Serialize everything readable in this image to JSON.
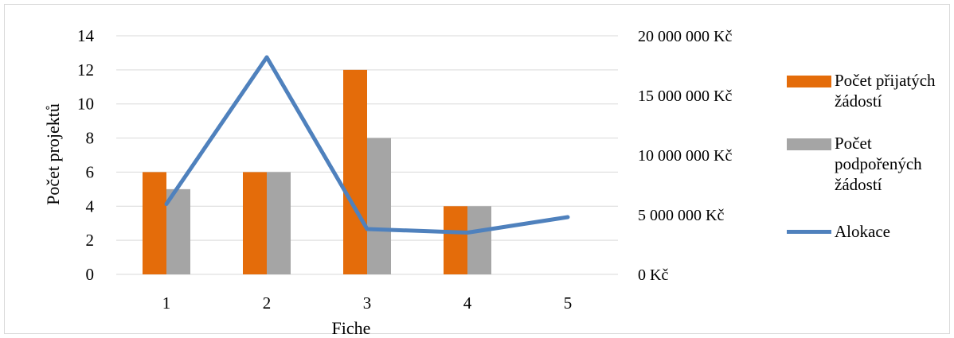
{
  "chart_data": {
    "type": "bar",
    "categories": [
      "1",
      "2",
      "3",
      "4",
      "5"
    ],
    "xlabel": "Fiche",
    "ylabel": "Počet projektů",
    "ylim": [
      0,
      14
    ],
    "yticks": [
      "0",
      "2",
      "4",
      "6",
      "8",
      "10",
      "12",
      "14"
    ],
    "y2lim": [
      0,
      20000000
    ],
    "y2ticks": [
      "0 Kč",
      "5 000 000 Kč",
      "10 000 000 Kč",
      "15 000 000 Kč",
      "20 000 000 Kč"
    ],
    "series": [
      {
        "name": "Počet přijatých žádostí",
        "type": "bar",
        "axis": "left",
        "color": "#e46c0a",
        "values": [
          6,
          6,
          12,
          4,
          0
        ]
      },
      {
        "name": "Počet podpořených žádostí",
        "type": "bar",
        "axis": "right-none",
        "color": "#a5a5a5",
        "values": [
          5,
          6,
          8,
          4,
          0
        ]
      },
      {
        "name": "Alokace",
        "type": "line",
        "axis": "right",
        "color": "#4f81bd",
        "values": [
          5900000,
          18200000,
          3800000,
          3500000,
          4800000
        ]
      }
    ],
    "grid": true,
    "legend_position": "right"
  }
}
